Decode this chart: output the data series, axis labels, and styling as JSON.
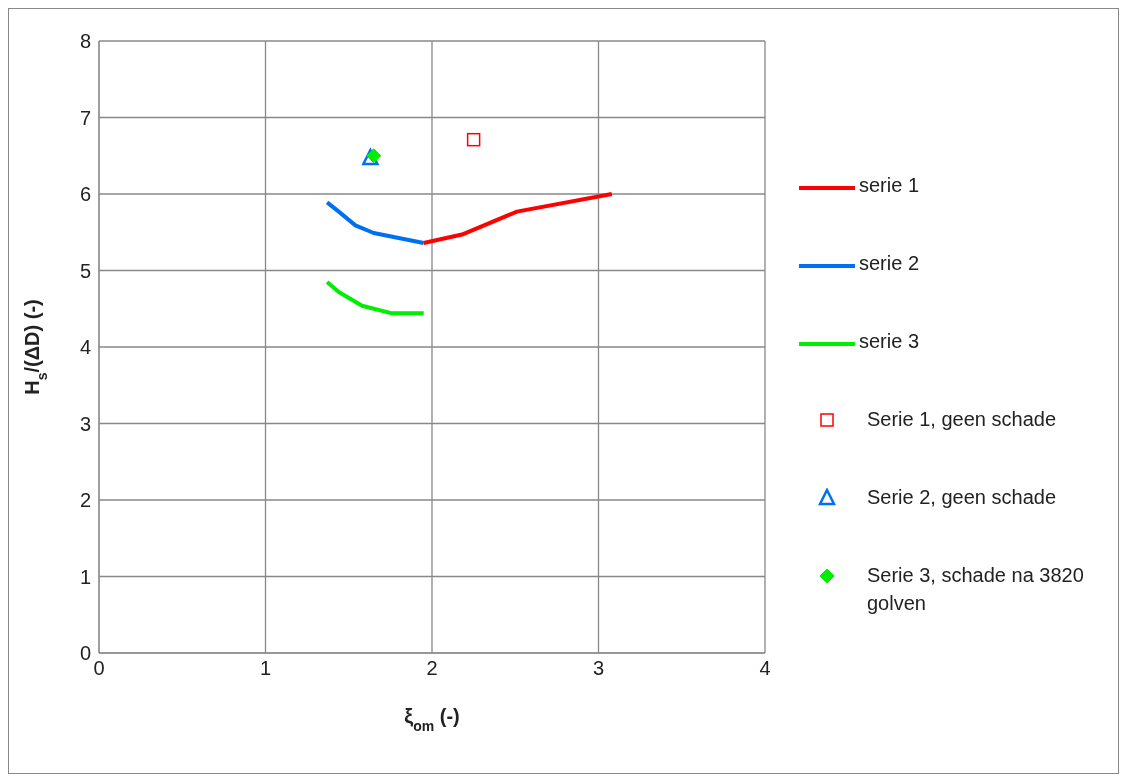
{
  "chart_data": {
    "type": "line",
    "xlabel": "ξ$_{om}$  (-)",
    "ylabel": "H$_{s}$/(ΔD)  (-)",
    "xlim": [
      0,
      4
    ],
    "xticks": [
      0,
      1,
      2,
      3,
      4
    ],
    "ylim": [
      0,
      8
    ],
    "yticks": [
      0,
      1,
      2,
      3,
      4,
      5,
      6,
      7,
      8
    ],
    "grid": true,
    "legend": "right",
    "line_style": "solid",
    "series": [
      {
        "name": "serie 1",
        "color": "#ff0000",
        "x": [
          1.95,
          2.18,
          2.51,
          3.08
        ],
        "values": [
          5.36,
          5.47,
          5.77,
          6.0
        ]
      },
      {
        "name": "serie 2",
        "color": "#0070f0",
        "x": [
          1.37,
          1.44,
          1.54,
          1.65,
          1.95
        ],
        "values": [
          5.89,
          5.77,
          5.59,
          5.49,
          5.36
        ]
      },
      {
        "name": "serie 3",
        "color": "#00ee00",
        "x": [
          1.37,
          1.44,
          1.58,
          1.76,
          1.95
        ],
        "values": [
          4.85,
          4.72,
          4.54,
          4.44,
          4.44
        ]
      },
      {
        "name": "Serie 1, geen schade",
        "type": "scatter",
        "marker": "square",
        "color": "#ff0000",
        "x": [
          2.25
        ],
        "values": [
          6.71
        ]
      },
      {
        "name": "Serie 2, geen schade",
        "type": "scatter",
        "marker": "triangle",
        "color": "#0070f0",
        "x": [
          1.63
        ],
        "values": [
          6.47
        ]
      },
      {
        "name": "Serie 3, schade na 3820 golven",
        "type": "scatter",
        "marker": "diamond",
        "color": "#00ee00",
        "x": [
          1.65
        ],
        "values": [
          6.5
        ]
      }
    ]
  }
}
